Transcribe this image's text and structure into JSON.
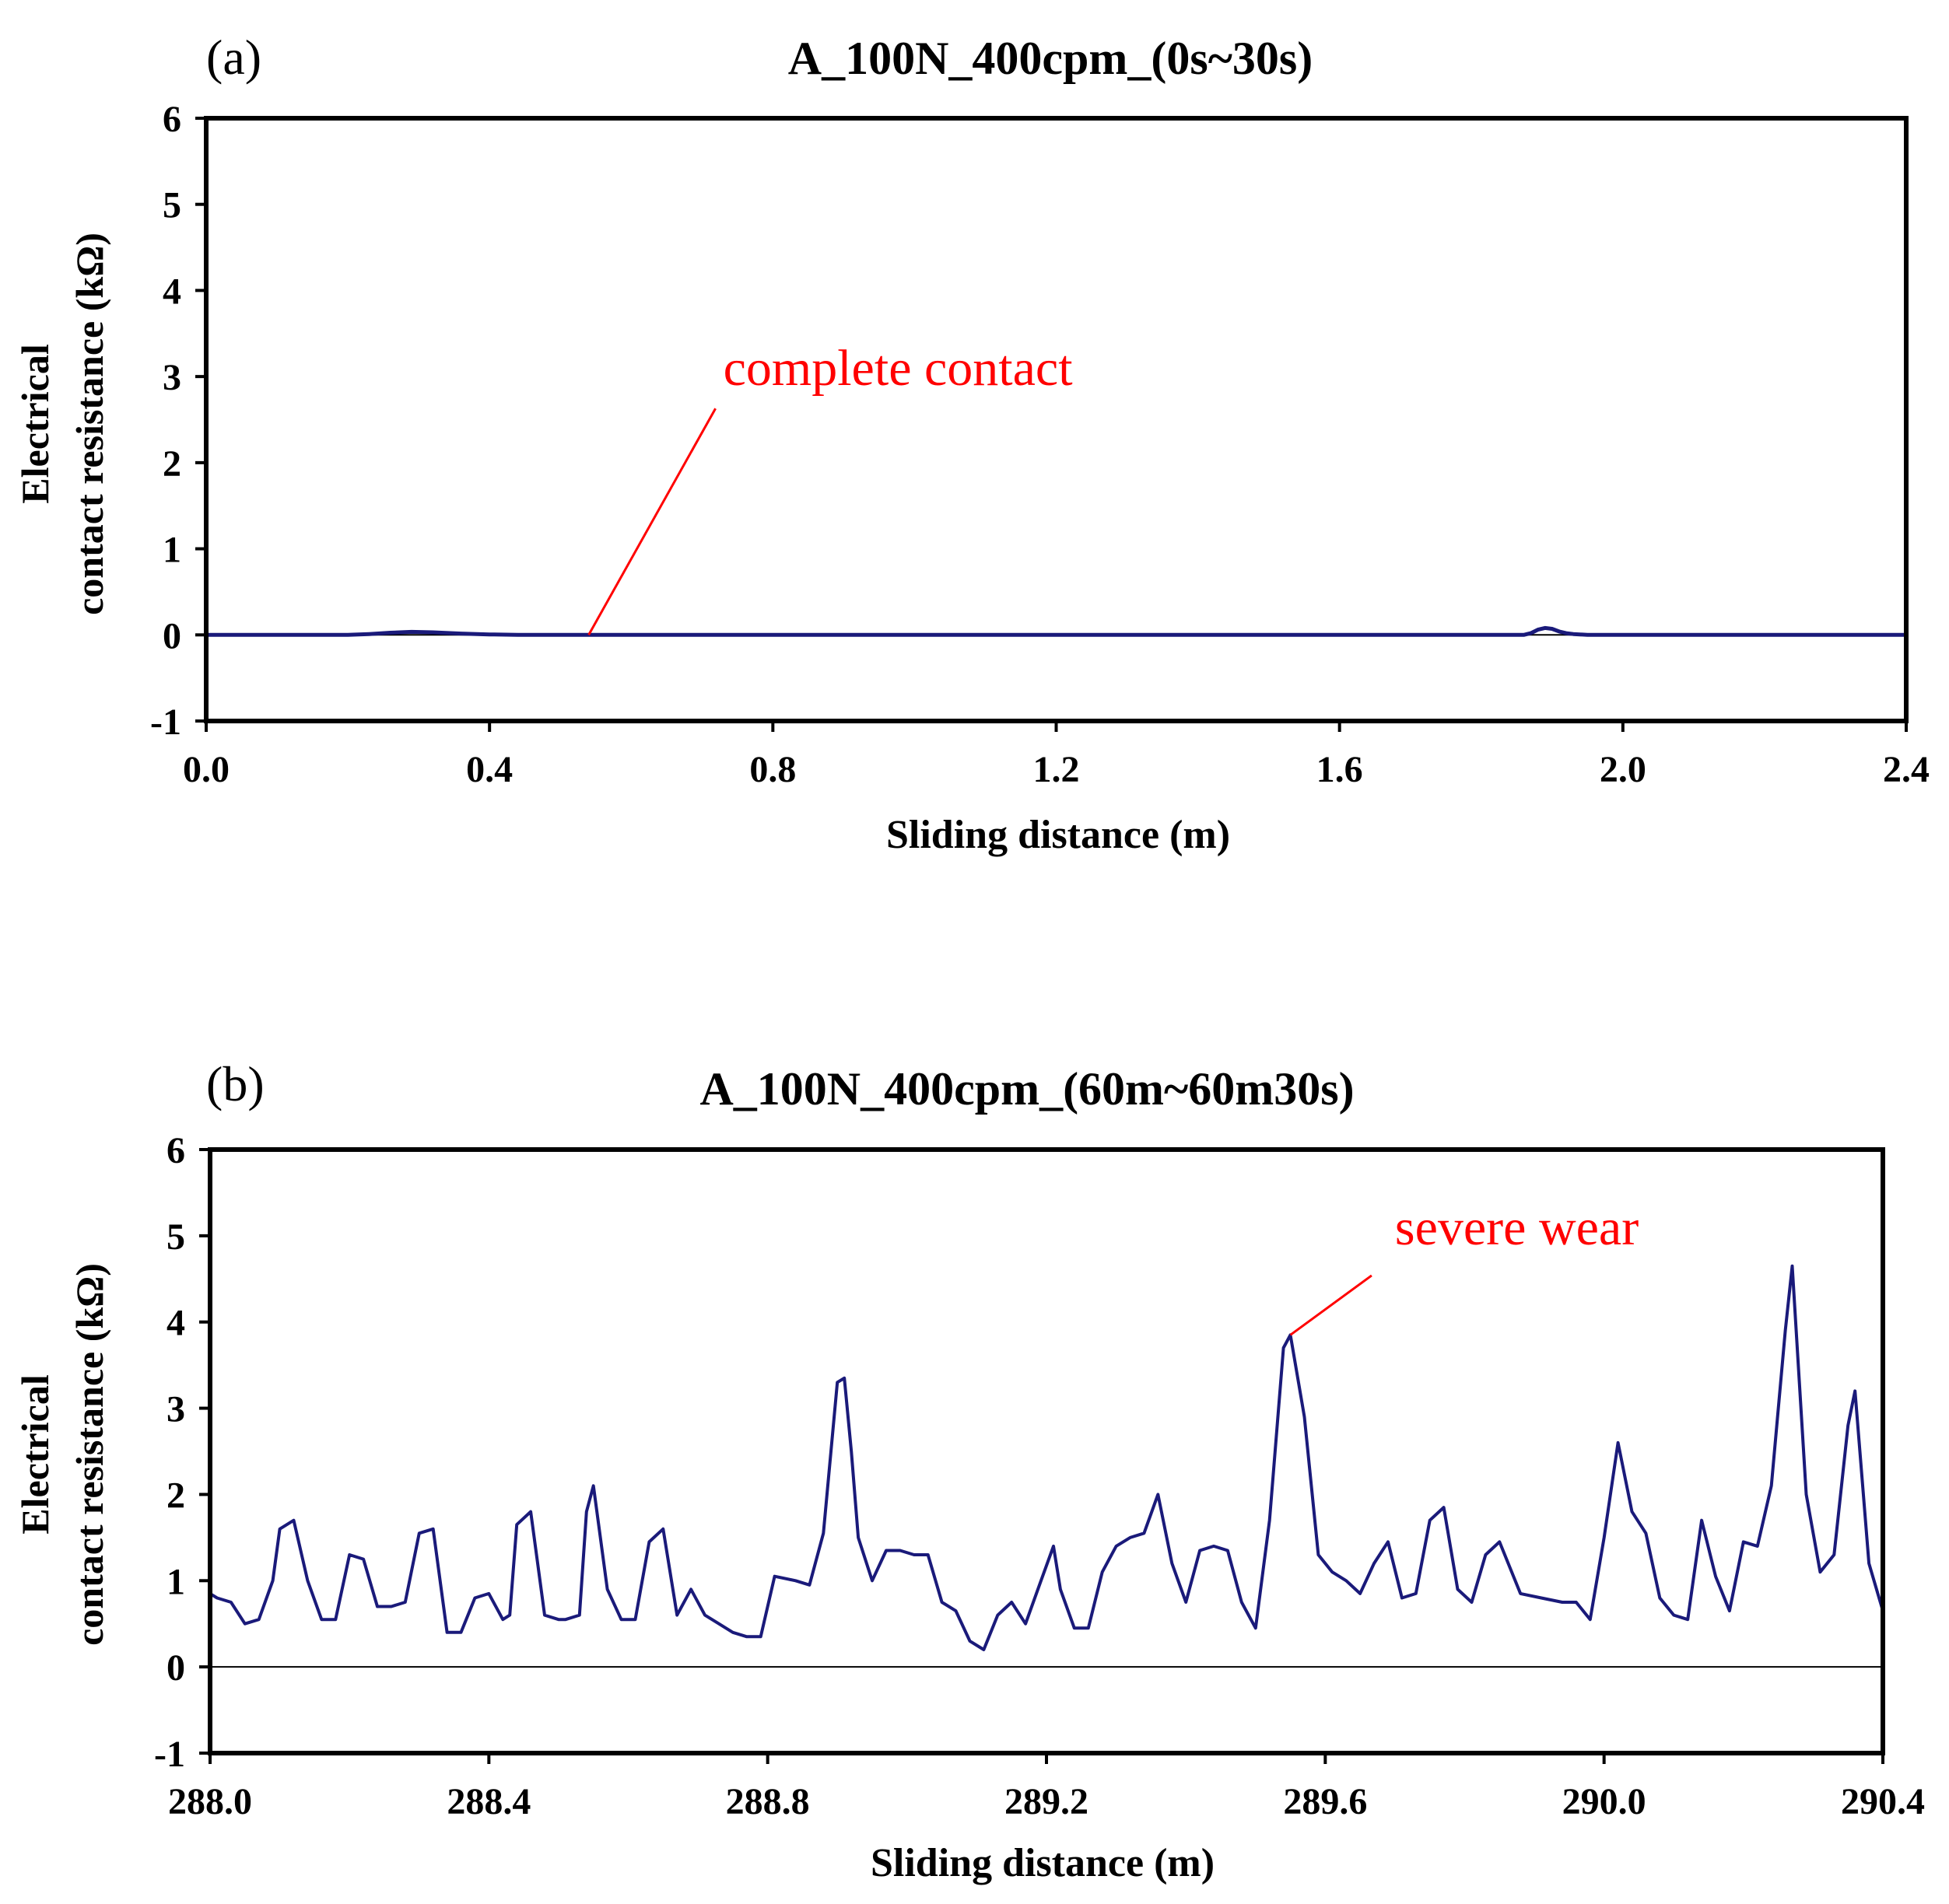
{
  "chart_data": [
    {
      "panel_label": "(a)",
      "type": "line",
      "title": "A_100N_400cpm_(0s~30s)",
      "xlabel": "Sliding distance (m)",
      "ylabel_line1": "Electrical",
      "ylabel_line2": "contact resistance (kΩ)",
      "xlim": [
        0.0,
        2.4
      ],
      "ylim": [
        -1,
        6
      ],
      "xticks": [
        "0.0",
        "0.4",
        "0.8",
        "1.2",
        "1.6",
        "2.0",
        "2.4"
      ],
      "yticks": [
        "-1",
        "0",
        "1",
        "2",
        "3",
        "4",
        "5",
        "6"
      ],
      "annotation": {
        "text": "complete contact",
        "point": [
          0.54,
          0.0
        ],
        "text_at": [
          0.73,
          2.9
        ]
      },
      "line_color": "#1a1a7a",
      "annotation_color": "#ff0000",
      "series": [
        {
          "name": "resistance",
          "x": [
            0.0,
            0.2,
            0.23,
            0.26,
            0.29,
            0.32,
            0.36,
            0.4,
            0.44,
            1.86,
            1.87,
            1.88,
            1.89,
            1.9,
            1.91,
            1.92,
            1.93,
            1.95,
            2.4
          ],
          "y": [
            0.0,
            0.0,
            0.01,
            0.025,
            0.035,
            0.03,
            0.015,
            0.005,
            0.0,
            0.0,
            0.02,
            0.06,
            0.08,
            0.07,
            0.04,
            0.02,
            0.01,
            0.0,
            0.0
          ]
        }
      ]
    },
    {
      "panel_label": "(b)",
      "type": "line",
      "title": "A_100N_400cpm_(60m~60m30s)",
      "xlabel": "Sliding distance (m)",
      "ylabel_line1": "Electrical",
      "ylabel_line2": "contact resistance (kΩ)",
      "xlim": [
        288.0,
        290.4
      ],
      "ylim": [
        -1,
        6
      ],
      "xticks": [
        "288.0",
        "288.4",
        "288.8",
        "289.2",
        "289.6",
        "290.0",
        "290.4"
      ],
      "yticks": [
        "-1",
        "0",
        "1",
        "2",
        "3",
        "4",
        "5",
        "6"
      ],
      "annotation": {
        "text": "severe wear",
        "point": [
          289.55,
          3.85
        ],
        "text_at": [
          289.7,
          4.9
        ]
      },
      "line_color": "#1a1a7a",
      "annotation_color": "#ff0000",
      "series": [
        {
          "name": "resistance",
          "x": [
            288.0,
            288.01,
            288.03,
            288.05,
            288.07,
            288.09,
            288.1,
            288.12,
            288.14,
            288.16,
            288.18,
            288.2,
            288.22,
            288.24,
            288.26,
            288.28,
            288.3,
            288.32,
            288.34,
            288.36,
            288.38,
            288.4,
            288.42,
            288.43,
            288.44,
            288.46,
            288.48,
            288.5,
            288.51,
            288.53,
            288.54,
            288.55,
            288.57,
            288.59,
            288.61,
            288.63,
            288.65,
            288.67,
            288.69,
            288.71,
            288.73,
            288.75,
            288.77,
            288.79,
            288.81,
            288.84,
            288.86,
            288.88,
            288.9,
            288.91,
            288.92,
            288.93,
            288.95,
            288.97,
            288.99,
            289.01,
            289.03,
            289.05,
            289.07,
            289.09,
            289.11,
            289.13,
            289.15,
            289.17,
            289.19,
            289.21,
            289.22,
            289.24,
            289.26,
            289.28,
            289.3,
            289.32,
            289.34,
            289.36,
            289.38,
            289.4,
            289.42,
            289.44,
            289.46,
            289.48,
            289.5,
            289.52,
            289.54,
            289.55,
            289.57,
            289.59,
            289.61,
            289.63,
            289.65,
            289.67,
            289.69,
            289.71,
            289.73,
            289.75,
            289.77,
            289.79,
            289.81,
            289.83,
            289.85,
            289.88,
            289.91,
            289.94,
            289.96,
            289.98,
            290.0,
            290.02,
            290.04,
            290.06,
            290.08,
            290.1,
            290.12,
            290.14,
            290.16,
            290.18,
            290.2,
            290.22,
            290.24,
            290.26,
            290.27,
            290.29,
            290.31,
            290.33,
            290.35,
            290.36,
            290.38,
            290.4
          ],
          "y": [
            0.85,
            0.8,
            0.75,
            0.5,
            0.55,
            1.0,
            1.6,
            1.7,
            1.0,
            0.55,
            0.55,
            1.3,
            1.25,
            0.7,
            0.7,
            0.75,
            1.55,
            1.6,
            0.4,
            0.4,
            0.8,
            0.85,
            0.55,
            0.6,
            1.65,
            1.8,
            0.6,
            0.55,
            0.55,
            0.6,
            1.8,
            2.1,
            0.9,
            0.55,
            0.55,
            1.45,
            1.6,
            0.6,
            0.9,
            0.6,
            0.5,
            0.4,
            0.35,
            0.35,
            1.05,
            1.0,
            0.95,
            1.55,
            3.3,
            3.35,
            2.5,
            1.5,
            1.0,
            1.35,
            1.35,
            1.3,
            1.3,
            0.75,
            0.65,
            0.3,
            0.2,
            0.6,
            0.75,
            0.5,
            0.95,
            1.4,
            0.9,
            0.45,
            0.45,
            1.1,
            1.4,
            1.5,
            1.55,
            2.0,
            1.2,
            0.75,
            1.35,
            1.4,
            1.35,
            0.75,
            0.45,
            1.7,
            3.7,
            3.85,
            2.9,
            1.3,
            1.1,
            1.0,
            0.85,
            1.2,
            1.45,
            0.8,
            0.85,
            1.7,
            1.85,
            0.9,
            0.75,
            1.3,
            1.45,
            0.85,
            0.8,
            0.75,
            0.75,
            0.55,
            1.5,
            2.6,
            1.8,
            1.55,
            0.8,
            0.6,
            0.55,
            1.7,
            1.05,
            0.65,
            1.45,
            1.4,
            2.1,
            3.9,
            4.65,
            2.0,
            1.1,
            1.3,
            2.8,
            3.2,
            1.2,
            0.65
          ]
        }
      ]
    }
  ]
}
